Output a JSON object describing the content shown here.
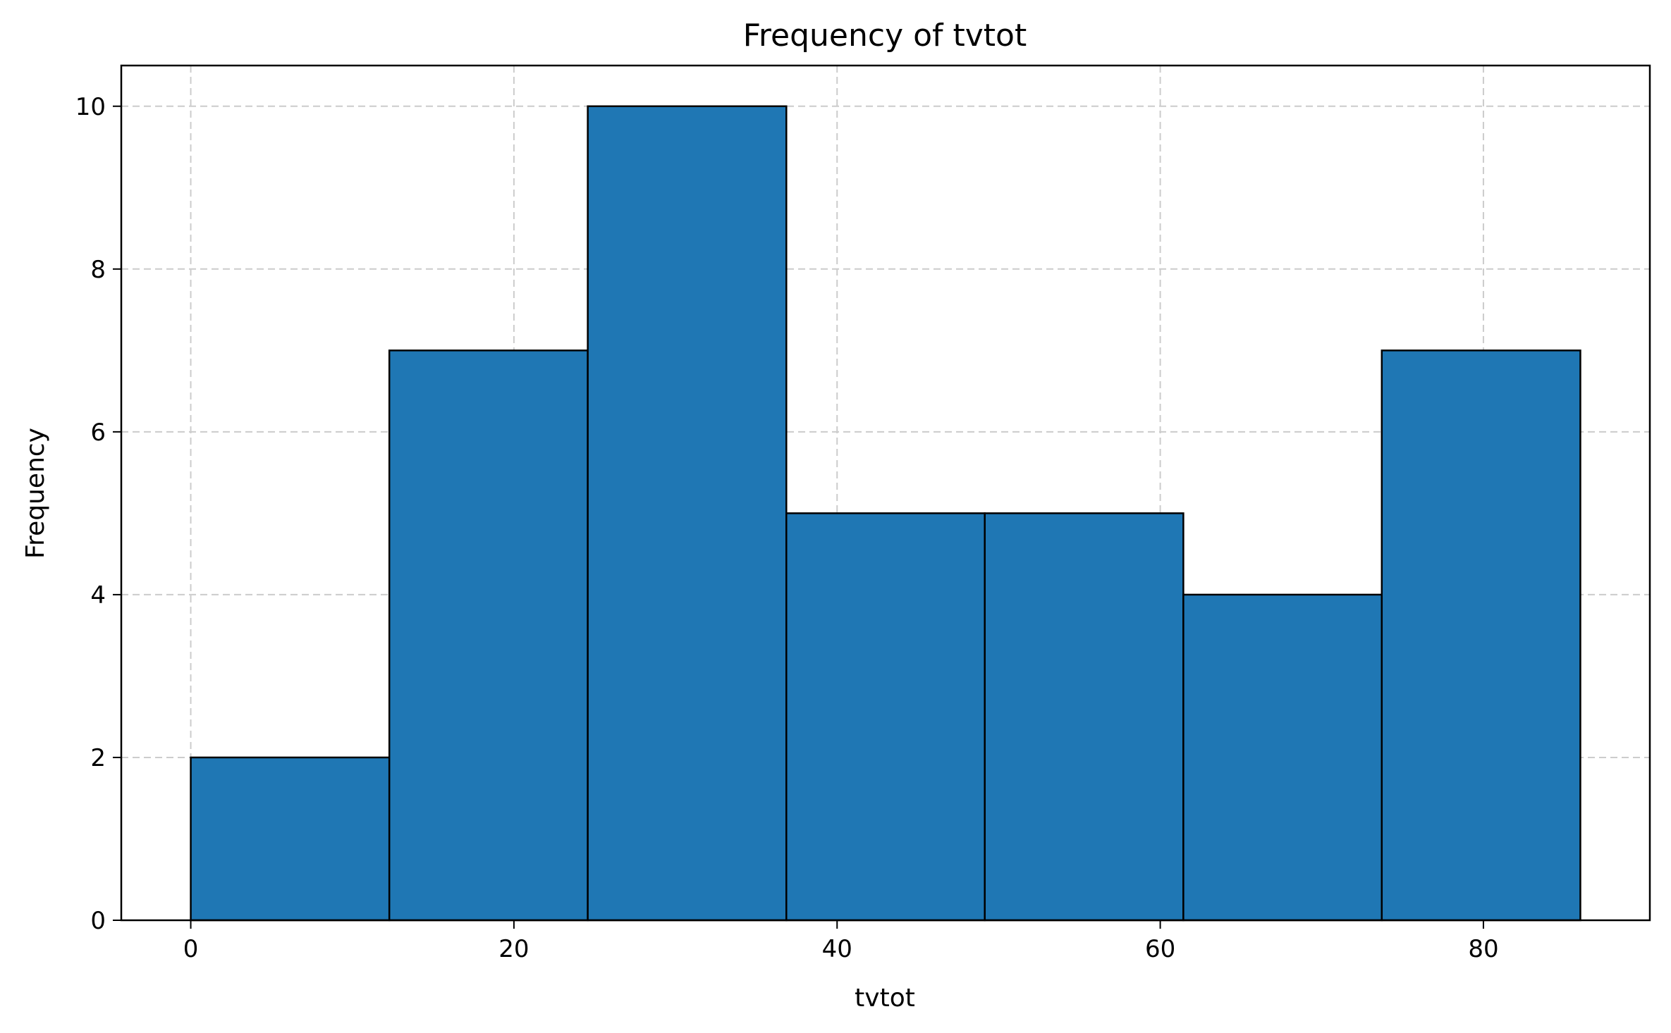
{
  "chart_data": {
    "type": "bar",
    "title": "Frequency of tvtot",
    "xlabel": "tvtot",
    "ylabel": "Frequency",
    "bins": [
      {
        "start": 0.0,
        "end": 12.29,
        "value": 2
      },
      {
        "start": 12.29,
        "end": 24.57,
        "value": 7
      },
      {
        "start": 24.57,
        "end": 36.86,
        "value": 10
      },
      {
        "start": 36.86,
        "end": 49.14,
        "value": 5
      },
      {
        "start": 49.14,
        "end": 61.43,
        "value": 5
      },
      {
        "start": 61.43,
        "end": 73.71,
        "value": 4
      },
      {
        "start": 73.71,
        "end": 86.0,
        "value": 7
      }
    ],
    "xlim": [
      -4.3,
      90.3
    ],
    "ylim": [
      0,
      10.5
    ],
    "xticks": [
      0,
      20,
      40,
      60,
      80
    ],
    "xtick_labels": [
      "0",
      "20",
      "40",
      "60",
      "80"
    ],
    "yticks": [
      0,
      2,
      4,
      6,
      8,
      10
    ],
    "ytick_labels": [
      "0",
      "2",
      "4",
      "6",
      "8",
      "10"
    ],
    "grid": true,
    "grid_style": "dashed",
    "bar_color": "#1f77b4",
    "edge_color": "#000000",
    "grid_color": "#cccccc"
  }
}
